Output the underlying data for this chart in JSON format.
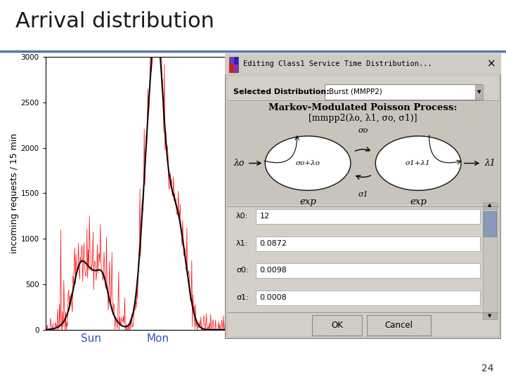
{
  "title": "Arrival distribution",
  "title_fontsize": 22,
  "title_color": "#1a1a1a",
  "bg_color": "#ffffff",
  "slide_number": "24",
  "chart": {
    "ylabel": "incoming requests / 15 min",
    "ylim": [
      0,
      3000
    ],
    "yticks": [
      0,
      500,
      1000,
      1500,
      2000,
      2500,
      3000
    ],
    "xtick_labels": [
      "Sun",
      "Mon"
    ],
    "ylabel_fontsize": 9,
    "xtick_fontsize": 11,
    "xtick_color": "#3355bb"
  },
  "dialog": {
    "bg_color": "#c8c4bc",
    "content_bg": "#d0ccc4",
    "white_area": "#e8e4de",
    "title_text": "Editing Class1 Service Time Distribution...",
    "selected_dist_label": "Selected Distribution:",
    "selected_dist_value": "Burst (MMPP2)",
    "mmpp_title": "Markov-Modulated Poisson Process:",
    "mmpp_formula": "[mmpp2(λo, λ1, σo, σ1)]",
    "params": [
      {
        "label": "λ0:",
        "value": "12"
      },
      {
        "label": "λ1:",
        "value": "0.0872"
      },
      {
        "label": "σ0:",
        "value": "0.0098"
      },
      {
        "label": "σ1:",
        "value": "0.0008"
      }
    ],
    "ok_button": "OK",
    "cancel_button": "Cancel"
  }
}
